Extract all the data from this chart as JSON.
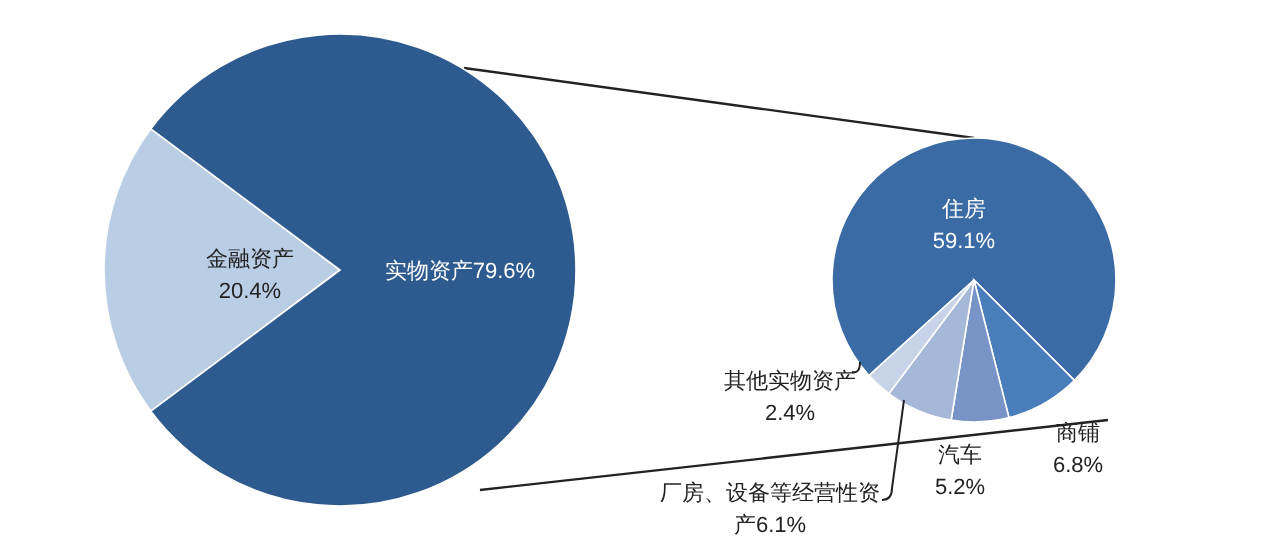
{
  "chart_data": [
    {
      "type": "pie",
      "categories": [
        "金融资产",
        "实物资产"
      ],
      "values": [
        20.4,
        79.6
      ],
      "colors": [
        "#b9cde5",
        "#2e5b8f"
      ],
      "value_labels": [
        "20.4%",
        "79.6%"
      ]
    },
    {
      "type": "pie",
      "categories": [
        "住房",
        "商铺",
        "汽车",
        "厂房、设备等经营性资产",
        "其他实物资产"
      ],
      "values": [
        59.1,
        6.8,
        5.2,
        6.1,
        2.4
      ],
      "colors": [
        "#3b6ba5",
        "#4a7ebb",
        "#7893c6",
        "#a6b8d8",
        "#c6d3e8"
      ],
      "value_labels": [
        "59.1%",
        "6.8%",
        "5.2%",
        "6.1%",
        "2.4%"
      ]
    }
  ]
}
